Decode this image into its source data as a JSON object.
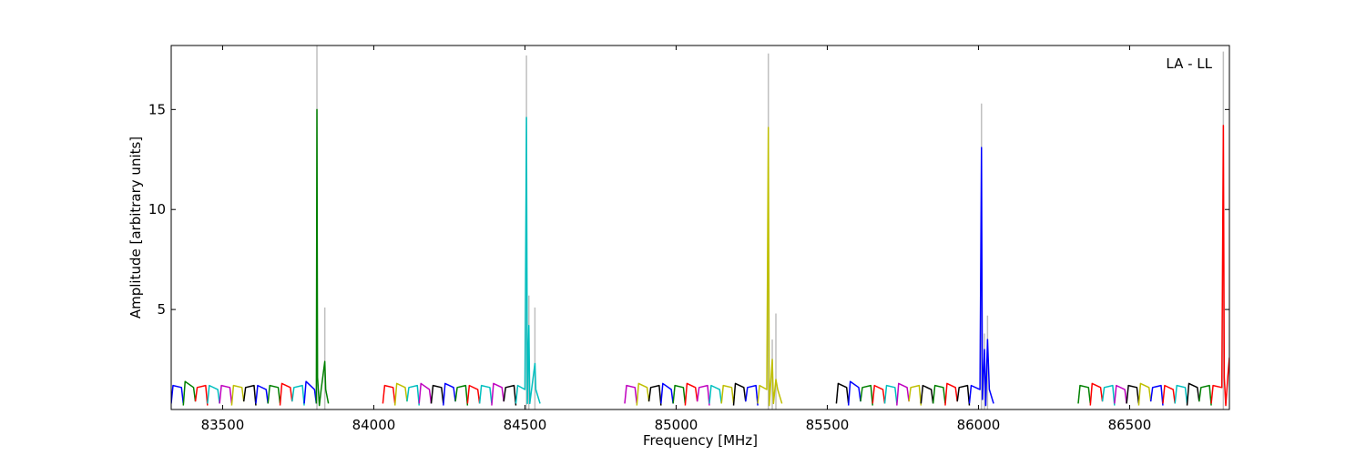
{
  "chart_data": {
    "type": "line",
    "annotation": "LA - LL",
    "x_label": "Frequency [MHz]",
    "y_label": "Amplitude [arbitrary units]",
    "xlim": [
      83330,
      86830
    ],
    "ylim": [
      0,
      18.2
    ],
    "xticks": [
      83500,
      84000,
      84500,
      85000,
      85500,
      86000,
      86500
    ],
    "yticks": [
      5,
      10,
      15
    ],
    "series": [
      {
        "color": "#bfbfbf",
        "x": [
          83812,
          83812,
          83812,
          83838,
          83838,
          83838,
          84505,
          84505,
          84505,
          84513,
          84513,
          84513,
          84533,
          84533,
          84533,
          85305,
          85305,
          85305,
          85318,
          85318,
          85318,
          85330,
          85330,
          85330,
          86010,
          86010,
          86010,
          86020,
          86020,
          86020,
          86030,
          86030,
          86030,
          86810,
          86810
        ],
        "values": [
          0,
          18.2,
          null,
          0,
          5.1,
          null,
          0,
          17.7,
          null,
          0,
          5.7,
          null,
          0,
          5.1,
          null,
          0,
          17.8,
          null,
          0,
          3.5,
          null,
          0,
          4.8,
          null,
          0,
          15.3,
          null,
          0,
          3.8,
          null,
          0,
          4.7,
          null,
          0,
          17.9
        ]
      },
      {
        "color": "#0000ff",
        "x": [
          83330,
          83336,
          83364,
          83370
        ],
        "values": [
          0.3,
          1.2,
          1.1,
          0.3
        ]
      },
      {
        "color": "#008000",
        "x": [
          83370,
          83376,
          83404,
          83410
        ],
        "values": [
          0.2,
          1.4,
          1.1,
          0.4
        ]
      },
      {
        "color": "#ff0000",
        "x": [
          83410,
          83416,
          83444,
          83450
        ],
        "values": [
          0.4,
          1.1,
          1.2,
          0.2
        ]
      },
      {
        "color": "#00bfbf",
        "x": [
          83450,
          83456,
          83484,
          83490
        ],
        "values": [
          0.3,
          1.2,
          1.0,
          0.3
        ]
      },
      {
        "color": "#bf00bf",
        "x": [
          83490,
          83496,
          83524,
          83530
        ],
        "values": [
          0.3,
          1.2,
          1.1,
          0.3
        ]
      },
      {
        "color": "#bfbf00",
        "x": [
          83530,
          83536,
          83564,
          83570
        ],
        "values": [
          0.2,
          1.2,
          1.1,
          0.4
        ]
      },
      {
        "color": "#000000",
        "x": [
          83570,
          83576,
          83604,
          83610
        ],
        "values": [
          0.4,
          1.1,
          1.2,
          0.2
        ]
      },
      {
        "color": "#0000ff",
        "x": [
          83610,
          83616,
          83644,
          83650
        ],
        "values": [
          0.3,
          1.2,
          1.0,
          0.3
        ]
      },
      {
        "color": "#008000",
        "x": [
          83650,
          83656,
          83684,
          83690
        ],
        "values": [
          0.3,
          1.2,
          1.1,
          0.3
        ]
      },
      {
        "color": "#ff0000",
        "x": [
          83690,
          83696,
          83724,
          83730
        ],
        "values": [
          0.2,
          1.3,
          1.1,
          0.4
        ]
      },
      {
        "color": "#00bfbf",
        "x": [
          83730,
          83736,
          83764,
          83770
        ],
        "values": [
          0.4,
          1.1,
          1.2,
          0.2
        ]
      },
      {
        "color": "#0000ff",
        "x": [
          83770,
          83776,
          83804,
          83810
        ],
        "values": [
          0.3,
          1.4,
          1.0,
          0.3
        ]
      },
      {
        "color": "#008000",
        "x": [
          83810,
          83812,
          83814,
          83820,
          83826,
          83838,
          83841,
          83850
        ],
        "values": [
          0.3,
          15.0,
          1.6,
          0.2,
          1.0,
          2.4,
          1.0,
          0.3
        ]
      },
      {
        "color": "#ff0000",
        "x": [
          84030,
          84036,
          84064,
          84070
        ],
        "values": [
          0.3,
          1.2,
          1.1,
          0.3
        ]
      },
      {
        "color": "#bfbf00",
        "x": [
          84070,
          84076,
          84104,
          84110
        ],
        "values": [
          0.2,
          1.3,
          1.1,
          0.4
        ]
      },
      {
        "color": "#00bfbf",
        "x": [
          84110,
          84116,
          84144,
          84150
        ],
        "values": [
          0.4,
          1.1,
          1.2,
          0.2
        ]
      },
      {
        "color": "#bf00bf",
        "x": [
          84150,
          84156,
          84184,
          84190
        ],
        "values": [
          0.3,
          1.3,
          1.0,
          0.3
        ]
      },
      {
        "color": "#000000",
        "x": [
          84190,
          84196,
          84224,
          84230
        ],
        "values": [
          0.3,
          1.2,
          1.1,
          0.3
        ]
      },
      {
        "color": "#0000ff",
        "x": [
          84230,
          84236,
          84264,
          84270
        ],
        "values": [
          0.2,
          1.3,
          1.1,
          0.4
        ]
      },
      {
        "color": "#008000",
        "x": [
          84270,
          84276,
          84304,
          84310
        ],
        "values": [
          0.4,
          1.1,
          1.2,
          0.2
        ]
      },
      {
        "color": "#ff0000",
        "x": [
          84310,
          84316,
          84344,
          84350
        ],
        "values": [
          0.3,
          1.2,
          1.0,
          0.3
        ]
      },
      {
        "color": "#00bfbf",
        "x": [
          84350,
          84356,
          84384,
          84390
        ],
        "values": [
          0.3,
          1.2,
          1.1,
          0.3
        ]
      },
      {
        "color": "#bf00bf",
        "x": [
          84390,
          84396,
          84424,
          84430
        ],
        "values": [
          0.2,
          1.3,
          1.1,
          0.4
        ]
      },
      {
        "color": "#000000",
        "x": [
          84430,
          84436,
          84464,
          84470
        ],
        "values": [
          0.4,
          1.1,
          1.2,
          0.2
        ]
      },
      {
        "color": "#00bfbf",
        "x": [
          84470,
          84476,
          84500,
          84505,
          84508,
          84513,
          84516,
          84533,
          84536,
          84550
        ],
        "values": [
          0.3,
          1.2,
          1.0,
          14.6,
          0.3,
          4.2,
          0.3,
          2.3,
          1.0,
          0.3
        ]
      },
      {
        "color": "#bf00bf",
        "x": [
          84830,
          84836,
          84864,
          84870
        ],
        "values": [
          0.3,
          1.2,
          1.1,
          0.3
        ]
      },
      {
        "color": "#bfbf00",
        "x": [
          84870,
          84876,
          84904,
          84910
        ],
        "values": [
          0.2,
          1.3,
          1.1,
          0.4
        ]
      },
      {
        "color": "#000000",
        "x": [
          84910,
          84916,
          84944,
          84950
        ],
        "values": [
          0.4,
          1.1,
          1.2,
          0.2
        ]
      },
      {
        "color": "#0000ff",
        "x": [
          84950,
          84956,
          84984,
          84990
        ],
        "values": [
          0.3,
          1.3,
          1.0,
          0.3
        ]
      },
      {
        "color": "#008000",
        "x": [
          84990,
          84996,
          85024,
          85030
        ],
        "values": [
          0.3,
          1.2,
          1.1,
          0.3
        ]
      },
      {
        "color": "#ff0000",
        "x": [
          85030,
          85036,
          85064,
          85070
        ],
        "values": [
          0.2,
          1.3,
          1.1,
          0.4
        ]
      },
      {
        "color": "#bf00bf",
        "x": [
          85070,
          85076,
          85104,
          85110
        ],
        "values": [
          0.4,
          1.1,
          1.2,
          0.2
        ]
      },
      {
        "color": "#00bfbf",
        "x": [
          85110,
          85116,
          85144,
          85150
        ],
        "values": [
          0.3,
          1.2,
          1.0,
          0.3
        ]
      },
      {
        "color": "#bfbf00",
        "x": [
          85150,
          85156,
          85184,
          85190
        ],
        "values": [
          0.3,
          1.2,
          1.1,
          0.3
        ]
      },
      {
        "color": "#000000",
        "x": [
          85190,
          85196,
          85224,
          85230
        ],
        "values": [
          0.2,
          1.3,
          1.1,
          0.4
        ]
      },
      {
        "color": "#0000ff",
        "x": [
          85230,
          85236,
          85264,
          85270
        ],
        "values": [
          0.4,
          1.1,
          1.2,
          0.2
        ]
      },
      {
        "color": "#bfbf00",
        "x": [
          85270,
          85276,
          85300,
          85305,
          85308,
          85318,
          85322,
          85330,
          85336,
          85350
        ],
        "values": [
          0.3,
          1.2,
          1.0,
          14.1,
          0.2,
          2.5,
          0.3,
          1.5,
          1.0,
          0.3
        ]
      },
      {
        "color": "#000000",
        "x": [
          85530,
          85536,
          85564,
          85570
        ],
        "values": [
          0.3,
          1.3,
          1.1,
          0.3
        ]
      },
      {
        "color": "#0000ff",
        "x": [
          85570,
          85576,
          85604,
          85610
        ],
        "values": [
          0.2,
          1.4,
          1.1,
          0.4
        ]
      },
      {
        "color": "#008000",
        "x": [
          85610,
          85616,
          85644,
          85650
        ],
        "values": [
          0.4,
          1.1,
          1.2,
          0.2
        ]
      },
      {
        "color": "#ff0000",
        "x": [
          85650,
          85656,
          85684,
          85690
        ],
        "values": [
          0.3,
          1.2,
          1.0,
          0.3
        ]
      },
      {
        "color": "#00bfbf",
        "x": [
          85690,
          85696,
          85724,
          85730
        ],
        "values": [
          0.3,
          1.2,
          1.1,
          0.3
        ]
      },
      {
        "color": "#bf00bf",
        "x": [
          85730,
          85736,
          85764,
          85770
        ],
        "values": [
          0.2,
          1.3,
          1.1,
          0.4
        ]
      },
      {
        "color": "#bfbf00",
        "x": [
          85770,
          85776,
          85804,
          85810
        ],
        "values": [
          0.4,
          1.1,
          1.2,
          0.2
        ]
      },
      {
        "color": "#000000",
        "x": [
          85810,
          85816,
          85844,
          85850
        ],
        "values": [
          0.3,
          1.2,
          1.0,
          0.3
        ]
      },
      {
        "color": "#008000",
        "x": [
          85850,
          85856,
          85884,
          85890
        ],
        "values": [
          0.3,
          1.2,
          1.1,
          0.3
        ]
      },
      {
        "color": "#ff0000",
        "x": [
          85890,
          85896,
          85924,
          85930
        ],
        "values": [
          0.2,
          1.3,
          1.1,
          0.4
        ]
      },
      {
        "color": "#000000",
        "x": [
          85930,
          85936,
          85964,
          85970
        ],
        "values": [
          0.4,
          1.1,
          1.2,
          0.2
        ]
      },
      {
        "color": "#0000ff",
        "x": [
          85970,
          85976,
          86005,
          86010,
          86013,
          86020,
          86024,
          86030,
          86036,
          86050
        ],
        "values": [
          0.3,
          1.2,
          1.0,
          13.1,
          0.5,
          3.0,
          0.2,
          3.5,
          1.0,
          0.3
        ]
      },
      {
        "color": "#008000",
        "x": [
          86330,
          86336,
          86364,
          86370
        ],
        "values": [
          0.3,
          1.2,
          1.1,
          0.3
        ]
      },
      {
        "color": "#ff0000",
        "x": [
          86370,
          86376,
          86404,
          86410
        ],
        "values": [
          0.2,
          1.3,
          1.1,
          0.4
        ]
      },
      {
        "color": "#00bfbf",
        "x": [
          86410,
          86416,
          86444,
          86450
        ],
        "values": [
          0.4,
          1.1,
          1.2,
          0.2
        ]
      },
      {
        "color": "#bf00bf",
        "x": [
          86450,
          86456,
          86484,
          86490
        ],
        "values": [
          0.3,
          1.2,
          1.0,
          0.3
        ]
      },
      {
        "color": "#000000",
        "x": [
          86490,
          86496,
          86524,
          86530
        ],
        "values": [
          0.3,
          1.2,
          1.1,
          0.3
        ]
      },
      {
        "color": "#bfbf00",
        "x": [
          86530,
          86536,
          86564,
          86570
        ],
        "values": [
          0.2,
          1.3,
          1.1,
          0.4
        ]
      },
      {
        "color": "#0000ff",
        "x": [
          86570,
          86576,
          86604,
          86610
        ],
        "values": [
          0.4,
          1.1,
          1.2,
          0.2
        ]
      },
      {
        "color": "#ff0000",
        "x": [
          86610,
          86616,
          86644,
          86650
        ],
        "values": [
          0.3,
          1.2,
          1.0,
          0.3
        ]
      },
      {
        "color": "#00bfbf",
        "x": [
          86650,
          86656,
          86684,
          86690
        ],
        "values": [
          0.3,
          1.2,
          1.1,
          0.3
        ]
      },
      {
        "color": "#000000",
        "x": [
          86690,
          86696,
          86724,
          86730
        ],
        "values": [
          0.2,
          1.3,
          1.1,
          0.4
        ]
      },
      {
        "color": "#008000",
        "x": [
          86730,
          86736,
          86764,
          86770
        ],
        "values": [
          0.4,
          1.1,
          1.2,
          0.2
        ]
      },
      {
        "color": "#ff0000",
        "x": [
          86770,
          86776,
          86805,
          86810,
          86813,
          86818,
          86825,
          86830
        ],
        "values": [
          0.3,
          1.2,
          1.1,
          14.2,
          1.6,
          0.2,
          1.7,
          2.6
        ]
      }
    ]
  }
}
